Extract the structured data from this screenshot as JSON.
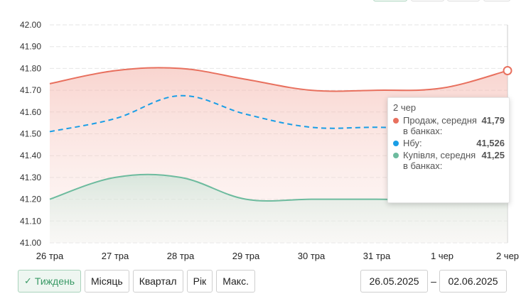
{
  "chart_data": {
    "type": "line",
    "x": [
      "26 тра",
      "27 тра",
      "28 тра",
      "29 тра",
      "30 тра",
      "31 тра",
      "1 чер",
      "2 чер"
    ],
    "ylim": [
      41.0,
      42.0
    ],
    "yticks": [
      "42.00",
      "41.90",
      "41.80",
      "41.70",
      "41.60",
      "41.50",
      "41.40",
      "41.30",
      "41.20",
      "41.10",
      "41.00"
    ],
    "grid": true,
    "series": [
      {
        "name": "Продаж, середня в банках",
        "color": "#e8705e",
        "style": "solid",
        "fill": true,
        "values": [
          41.73,
          41.79,
          41.8,
          41.75,
          41.7,
          41.7,
          41.71,
          41.79
        ]
      },
      {
        "name": "Нбу",
        "color": "#1a9ee6",
        "style": "dashed",
        "fill": false,
        "values": [
          41.51,
          41.57,
          41.675,
          41.59,
          41.53,
          41.53,
          41.525,
          41.526
        ]
      },
      {
        "name": "Купівля, середня в банках",
        "color": "#6dbb9e",
        "style": "solid",
        "fill": true,
        "values": [
          41.2,
          41.3,
          41.3,
          41.2,
          41.2,
          41.2,
          41.2,
          41.25
        ]
      }
    ]
  },
  "tooltip": {
    "date": "2 чер",
    "rows": [
      {
        "label": "Продаж, середня в банках:",
        "value": "41,79",
        "color": "#e8705e"
      },
      {
        "label": "Нбу:",
        "value": "41,526",
        "color": "#1a9ee6"
      },
      {
        "label": "Купівля, середня в банках:",
        "value": "41,25",
        "color": "#6dbb9e"
      }
    ]
  },
  "periods": {
    "week": "Тиждень",
    "month": "Місяць",
    "quarter": "Квартал",
    "year": "Рік",
    "max": "Макс."
  },
  "date_range": {
    "from": "26.05.2025",
    "separator": "–",
    "to": "02.06.2025"
  }
}
